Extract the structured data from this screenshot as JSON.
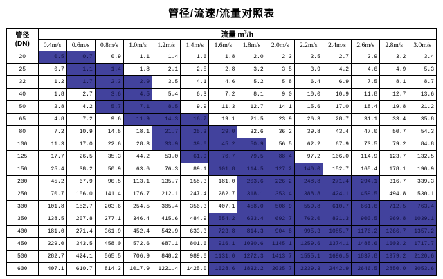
{
  "title": "管径/流速/流量对照表",
  "colors": {
    "highlight_bg": "#42429D",
    "highlight_text": "#12123E",
    "border": "#000000",
    "text": "#000000"
  },
  "table": {
    "corner_line1": "管径",
    "corner_line2": "(DN)",
    "flow_label": "流量",
    "flow_unit_base": "m",
    "flow_unit_exp": "3",
    "flow_unit_rest": "/h",
    "velocity_headers": [
      "0.4m/s",
      "0.6m/s",
      "0.8m/s",
      "1.0m/s",
      "1.2m/s",
      "1.4m/s",
      "1.6m/s",
      "1.8m/s",
      "2.0m/s",
      "2.2m/s",
      "2.4m/s",
      "2.6m/s",
      "2.8m/s",
      "3.0m/s"
    ],
    "rows": [
      {
        "dn": "20",
        "values": [
          "0.5",
          "0.7",
          "0.9",
          "1.1",
          "1.4",
          "1.6",
          "1.8",
          "2.0",
          "2.3",
          "2.5",
          "2.7",
          "2.9",
          "3.2",
          "3.4"
        ],
        "highlight": [
          0,
          1
        ]
      },
      {
        "dn": "25",
        "values": [
          "0.7",
          "1.1",
          "1.4",
          "1.8",
          "2.1",
          "2.5",
          "2.8",
          "3.2",
          "3.5",
          "3.9",
          "4.2",
          "4.6",
          "4.9",
          "5.3"
        ],
        "highlight": [
          1,
          2
        ]
      },
      {
        "dn": "32",
        "values": [
          "1.2",
          "1.7",
          "2.3",
          "2.9",
          "3.5",
          "4.1",
          "4.6",
          "5.2",
          "5.8",
          "6.4",
          "6.9",
          "7.5",
          "8.1",
          "8.7"
        ],
        "highlight": [
          1,
          2,
          3
        ]
      },
      {
        "dn": "40",
        "values": [
          "1.8",
          "2.7",
          "3.6",
          "4.5",
          "5.4",
          "6.3",
          "7.2",
          "8.1",
          "9.0",
          "10.0",
          "10.9",
          "11.8",
          "12.7",
          "13.6"
        ],
        "highlight": [
          2,
          3
        ]
      },
      {
        "dn": "50",
        "values": [
          "2.8",
          "4.2",
          "5.7",
          "7.1",
          "8.5",
          "9.9",
          "11.3",
          "12.7",
          "14.1",
          "15.6",
          "17.0",
          "18.4",
          "19.8",
          "21.2"
        ],
        "highlight": [
          2,
          3,
          4
        ]
      },
      {
        "dn": "65",
        "values": [
          "4.8",
          "7.2",
          "9.6",
          "11.9",
          "14.3",
          "16.7",
          "19.1",
          "21.5",
          "23.9",
          "26.3",
          "28.7",
          "31.1",
          "33.4",
          "35.8"
        ],
        "highlight": [
          3,
          4,
          5
        ]
      },
      {
        "dn": "80",
        "values": [
          "7.2",
          "10.9",
          "14.5",
          "18.1",
          "21.7",
          "25.3",
          "29.0",
          "32.6",
          "36.2",
          "39.8",
          "43.4",
          "47.0",
          "50.7",
          "54.3"
        ],
        "highlight": [
          4,
          5,
          6
        ]
      },
      {
        "dn": "100",
        "values": [
          "11.3",
          "17.0",
          "22.6",
          "28.3",
          "33.9",
          "39.6",
          "45.2",
          "50.9",
          "56.5",
          "62.2",
          "67.9",
          "73.5",
          "79.2",
          "84.8"
        ],
        "highlight": [
          4,
          5,
          6,
          7
        ]
      },
      {
        "dn": "125",
        "values": [
          "17.7",
          "26.5",
          "35.3",
          "44.2",
          "53.0",
          "61.9",
          "70.7",
          "79.5",
          "88.4",
          "97.2",
          "106.0",
          "114.9",
          "123.7",
          "132.5"
        ],
        "highlight": [
          5,
          6,
          7,
          8
        ]
      },
      {
        "dn": "150",
        "values": [
          "25.4",
          "38.2",
          "50.9",
          "63.6",
          "76.3",
          "89.1",
          "101.8",
          "114.5",
          "127.2",
          "140.0",
          "152.7",
          "165.4",
          "178.1",
          "190.9"
        ],
        "highlight": [
          6,
          7,
          8,
          9
        ]
      },
      {
        "dn": "200",
        "values": [
          "45.2",
          "67.9",
          "90.5",
          "113.1",
          "135.7",
          "158.3",
          "181.0",
          "203.6",
          "226.2",
          "248.8",
          "271.4",
          "294.1",
          "316.7",
          "339.3"
        ],
        "highlight": [
          7,
          8,
          9,
          10,
          11
        ]
      },
      {
        "dn": "250",
        "values": [
          "70.7",
          "106.0",
          "141.4",
          "176.7",
          "212.1",
          "247.4",
          "282.7",
          "318.1",
          "353.4",
          "388.8",
          "424.1",
          "459.5",
          "494.8",
          "530.1"
        ],
        "highlight": [
          7,
          8,
          9,
          10,
          11
        ]
      },
      {
        "dn": "300",
        "values": [
          "101.8",
          "152.7",
          "203.6",
          "254.5",
          "305.4",
          "356.3",
          "407.1",
          "458.0",
          "508.9",
          "559.8",
          "610.7",
          "661.6",
          "712.5",
          "763.4"
        ],
        "highlight": [
          7,
          8,
          9,
          10,
          11,
          12,
          13
        ]
      },
      {
        "dn": "350",
        "values": [
          "138.5",
          "207.8",
          "277.1",
          "346.4",
          "415.6",
          "484.9",
          "554.2",
          "623.4",
          "692.7",
          "762.0",
          "831.3",
          "900.5",
          "969.8",
          "1039.1"
        ],
        "highlight": [
          6,
          7,
          8,
          9,
          10,
          11,
          12,
          13
        ]
      },
      {
        "dn": "400",
        "values": [
          "181.0",
          "271.4",
          "361.9",
          "452.4",
          "542.9",
          "633.3",
          "723.8",
          "814.3",
          "904.8",
          "995.3",
          "1085.7",
          "1176.2",
          "1266.7",
          "1357.2"
        ],
        "highlight": [
          6,
          7,
          8,
          9,
          10,
          11,
          12,
          13
        ]
      },
      {
        "dn": "450",
        "values": [
          "229.0",
          "343.5",
          "458.0",
          "572.6",
          "687.1",
          "801.6",
          "916.1",
          "1030.6",
          "1145.1",
          "1259.6",
          "1374.1",
          "1488.6",
          "1603.2",
          "1717.7"
        ],
        "highlight": [
          6,
          7,
          8,
          9,
          10,
          11,
          12,
          13
        ]
      },
      {
        "dn": "500",
        "values": [
          "282.7",
          "424.1",
          "565.5",
          "706.9",
          "848.2",
          "989.6",
          "1131.0",
          "1272.3",
          "1413.7",
          "1555.1",
          "1696.5",
          "1837.8",
          "1979.2",
          "2120.6"
        ],
        "highlight": [
          6,
          7,
          8,
          9,
          10,
          11,
          12,
          13
        ]
      },
      {
        "dn": "600",
        "values": [
          "407.1",
          "610.7",
          "814.3",
          "1017.9",
          "1221.4",
          "1425.0",
          "1628.6",
          "1832.2",
          "2035.7",
          "2239.3",
          "2442.9",
          "2646.5",
          "2850.0",
          "3053.6"
        ],
        "highlight": [
          6,
          7,
          8,
          9,
          10,
          11,
          12,
          13
        ]
      }
    ]
  }
}
